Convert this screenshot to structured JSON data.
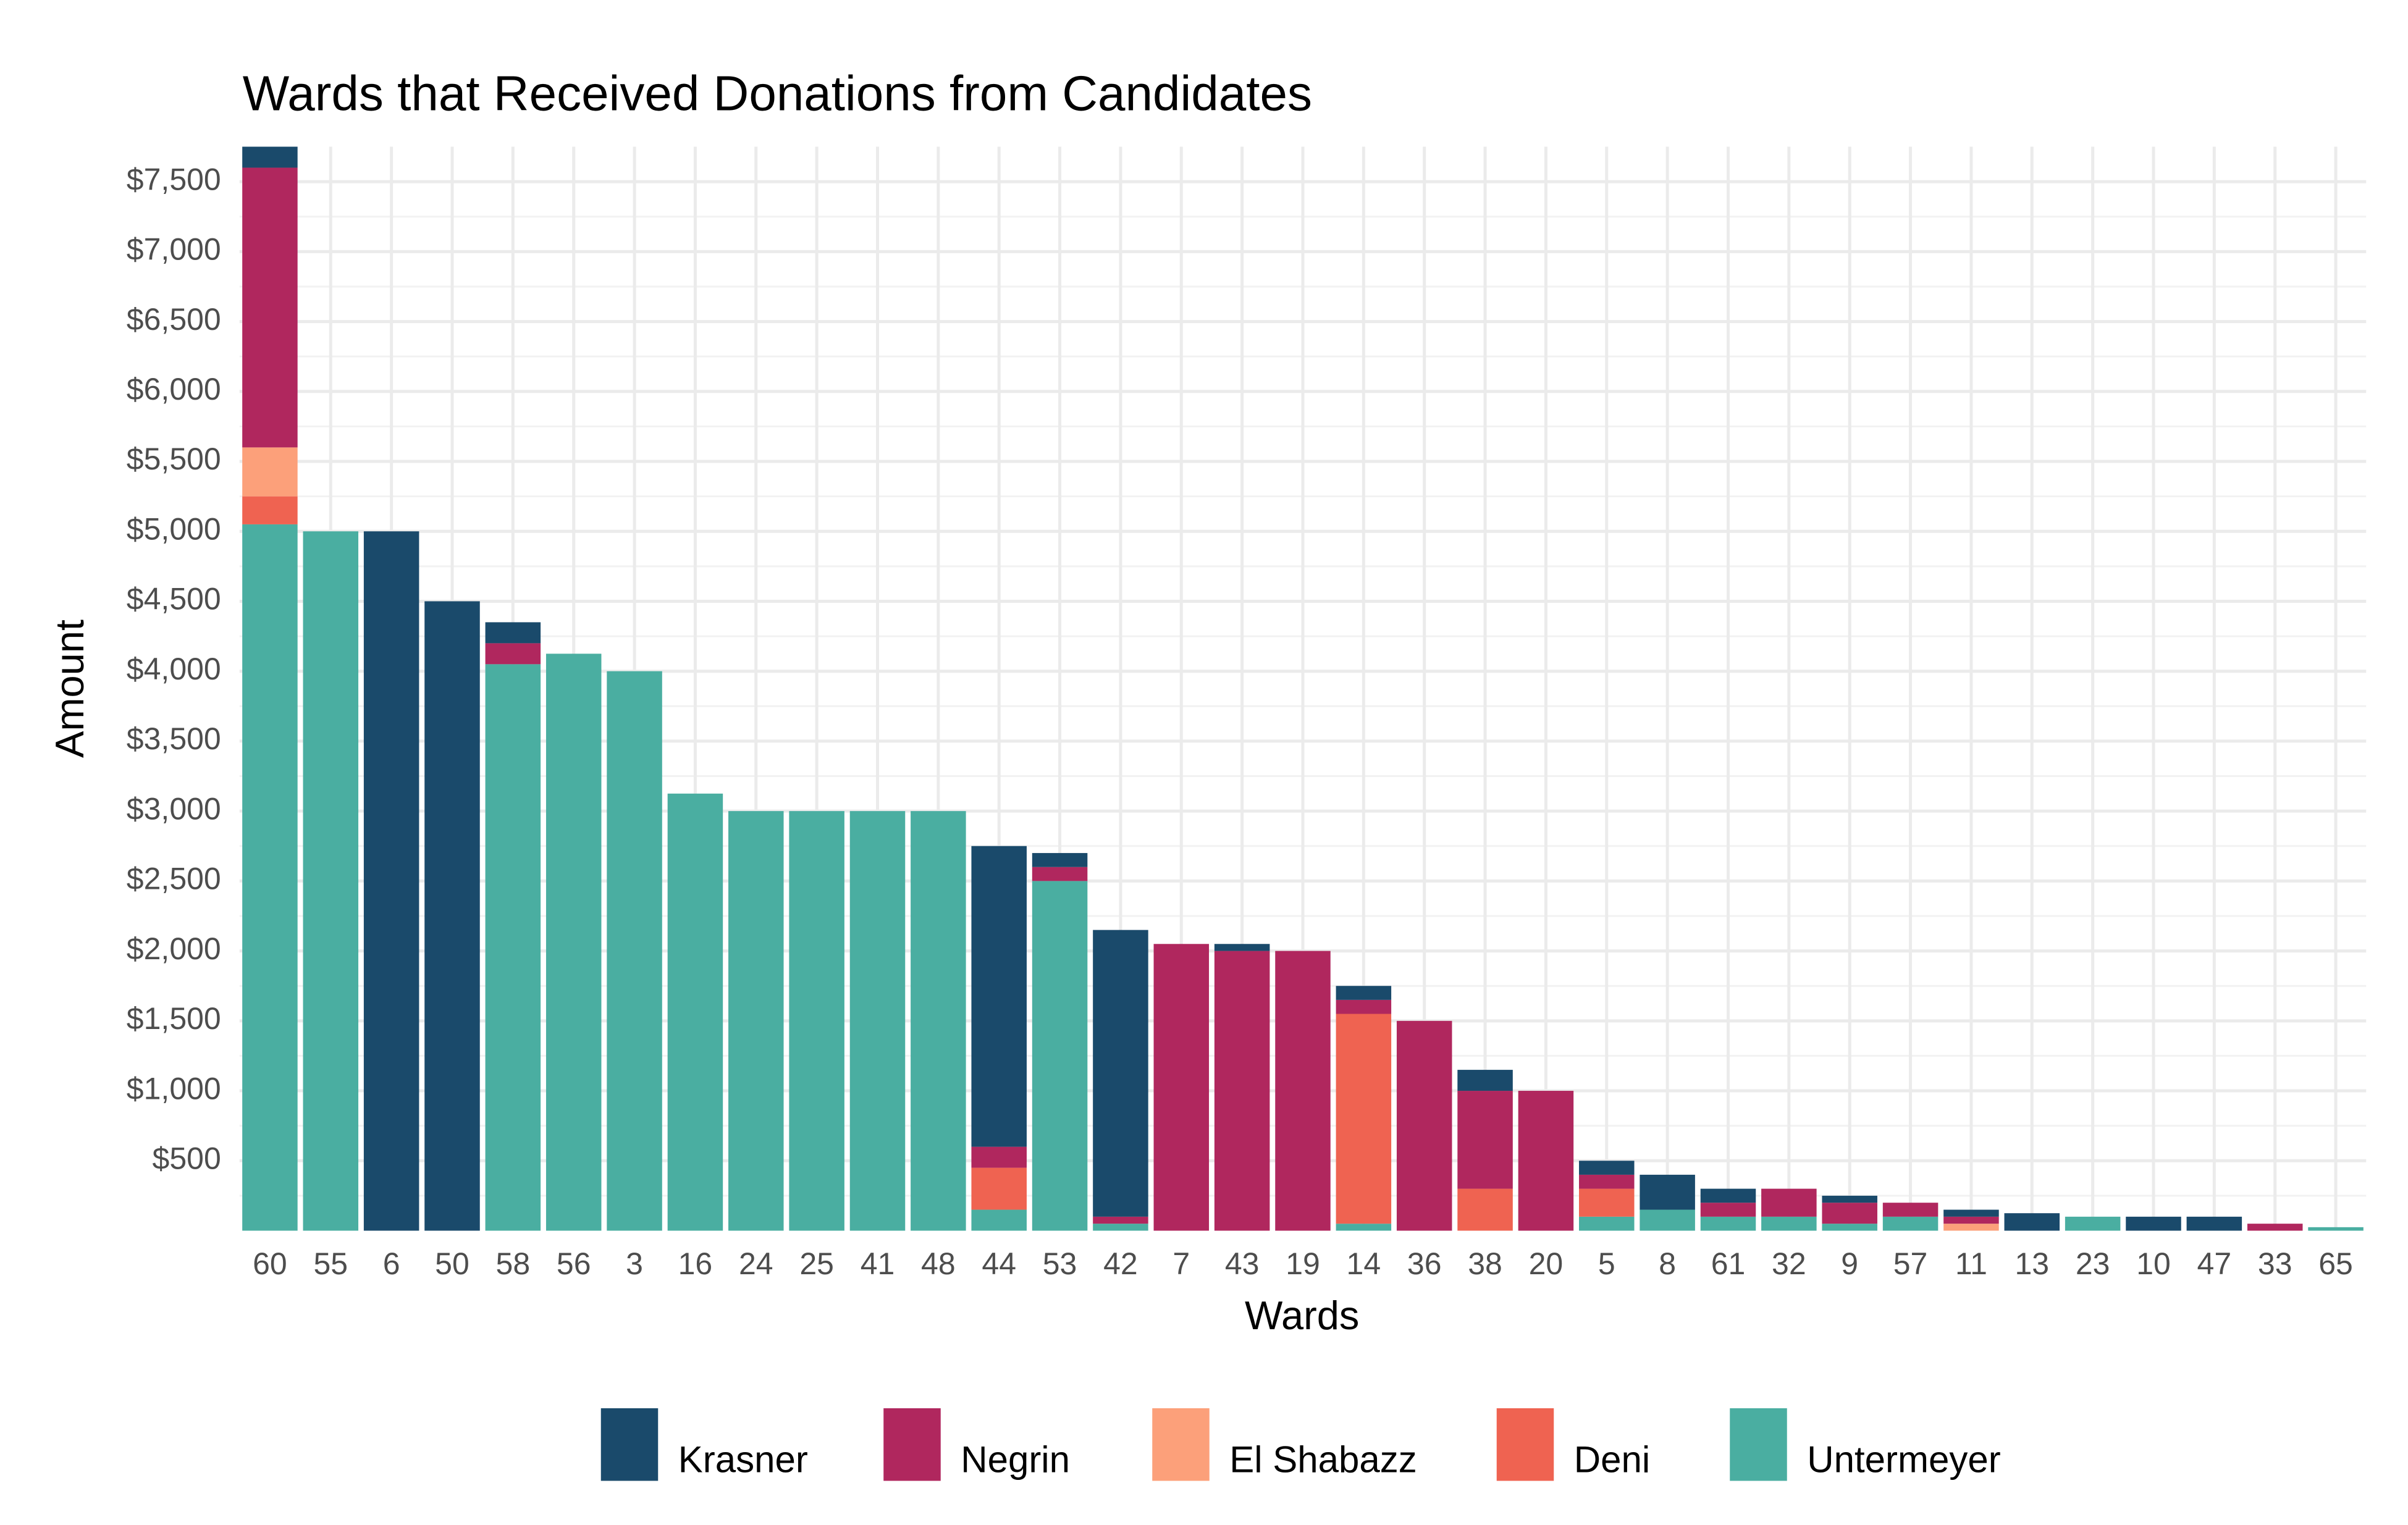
{
  "chart_data": {
    "type": "stacked-bar",
    "title": "Wards that Received Donations from Candidates",
    "x_label": "Wards",
    "y_label": "Amount",
    "categories": [
      "60",
      "55",
      "6",
      "50",
      "58",
      "56",
      "3",
      "16",
      "24",
      "25",
      "41",
      "48",
      "44",
      "53",
      "42",
      "7",
      "43",
      "19",
      "14",
      "36",
      "38",
      "20",
      "5",
      "8",
      "61",
      "32",
      "9",
      "57",
      "11",
      "13",
      "23",
      "10",
      "47",
      "33",
      "65"
    ],
    "series": [
      {
        "name": "Krasner",
        "color": "#1a4a6b",
        "values": [
          200,
          0,
          5000,
          4500,
          150,
          0,
          0,
          0,
          0,
          0,
          0,
          0,
          2150,
          100,
          2050,
          0,
          50,
          0,
          100,
          0,
          150,
          0,
          100,
          250,
          100,
          0,
          50,
          0,
          50,
          125,
          0,
          100,
          100,
          0,
          0
        ]
      },
      {
        "name": "Negrin",
        "color": "#b0275e",
        "values": [
          2000,
          0,
          0,
          0,
          150,
          0,
          0,
          0,
          0,
          0,
          0,
          0,
          150,
          100,
          50,
          2050,
          2000,
          2000,
          100,
          1500,
          700,
          1000,
          100,
          0,
          100,
          200,
          150,
          100,
          50,
          0,
          0,
          0,
          0,
          50,
          0
        ]
      },
      {
        "name": "El Shabazz",
        "color": "#fca07a",
        "values": [
          350,
          0,
          0,
          0,
          0,
          0,
          0,
          0,
          0,
          0,
          0,
          0,
          0,
          0,
          0,
          0,
          0,
          0,
          0,
          0,
          0,
          0,
          0,
          0,
          0,
          0,
          0,
          0,
          50,
          0,
          0,
          0,
          0,
          0,
          0
        ]
      },
      {
        "name": "Deni",
        "color": "#ef6351",
        "values": [
          200,
          0,
          0,
          0,
          0,
          0,
          0,
          0,
          0,
          0,
          0,
          0,
          300,
          0,
          0,
          0,
          0,
          0,
          1500,
          0,
          300,
          0,
          200,
          0,
          0,
          0,
          0,
          0,
          0,
          0,
          0,
          0,
          0,
          0,
          0
        ]
      },
      {
        "name": "Untermeyer",
        "color": "#4aaea1",
        "values": [
          5050,
          5000,
          0,
          0,
          4050,
          4125,
          4000,
          3125,
          3000,
          3000,
          3000,
          3000,
          150,
          2500,
          50,
          0,
          0,
          0,
          50,
          0,
          0,
          0,
          100,
          150,
          100,
          100,
          50,
          100,
          0,
          0,
          100,
          0,
          0,
          0,
          25
        ]
      }
    ],
    "ylim": [
      0,
      7750
    ],
    "yticks": [
      {
        "value": 500,
        "label": "$500"
      },
      {
        "value": 1000,
        "label": "$1,000"
      },
      {
        "value": 1500,
        "label": "$1,500"
      },
      {
        "value": 2000,
        "label": "$2,000"
      },
      {
        "value": 2500,
        "label": "$2,500"
      },
      {
        "value": 3000,
        "label": "$3,000"
      },
      {
        "value": 3500,
        "label": "$3,500"
      },
      {
        "value": 4000,
        "label": "$4,000"
      },
      {
        "value": 4500,
        "label": "$4,500"
      },
      {
        "value": 5000,
        "label": "$5,000"
      },
      {
        "value": 5500,
        "label": "$5,500"
      },
      {
        "value": 6000,
        "label": "$6,000"
      },
      {
        "value": 6500,
        "label": "$6,500"
      },
      {
        "value": 7000,
        "label": "$7,000"
      },
      {
        "value": 7500,
        "label": "$7,500"
      }
    ],
    "grid": true,
    "legend": "bottom"
  }
}
